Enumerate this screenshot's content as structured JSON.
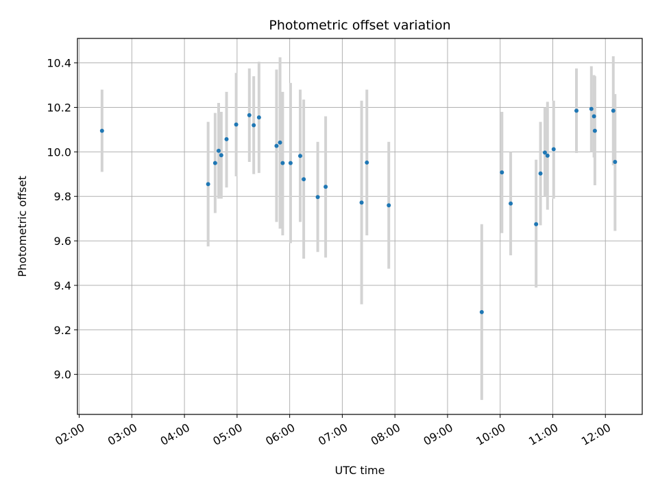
{
  "chart_data": {
    "type": "scatter",
    "title": "Photometric offset variation",
    "xlabel": "UTC time",
    "ylabel": "Photometric offset",
    "x_ticks": [
      "02:00",
      "03:00",
      "04:00",
      "05:00",
      "06:00",
      "07:00",
      "08:00",
      "09:00",
      "10:00",
      "11:00",
      "12:00"
    ],
    "y_ticks": [
      "9.0",
      "9.2",
      "9.4",
      "9.6",
      "9.8",
      "10.0",
      "10.2",
      "10.4"
    ],
    "xlim": [
      "01:58",
      "12:42"
    ],
    "ylim": [
      8.82,
      10.51
    ],
    "grid": true,
    "colors": {
      "point": "#1f77b4",
      "errorbar": "#d3d3d3",
      "grid": "#b0b0b0"
    },
    "points": [
      {
        "t": "02:26",
        "y": 10.095,
        "lo": 9.91,
        "hi": 10.28
      },
      {
        "t": "04:27",
        "y": 9.855,
        "lo": 9.575,
        "hi": 10.135
      },
      {
        "t": "04:35",
        "y": 9.95,
        "lo": 9.725,
        "hi": 10.175
      },
      {
        "t": "04:39",
        "y": 10.005,
        "lo": 9.79,
        "hi": 10.22
      },
      {
        "t": "04:42",
        "y": 9.985,
        "lo": 9.79,
        "hi": 10.18
      },
      {
        "t": "04:48",
        "y": 10.057,
        "lo": 9.84,
        "hi": 10.27
      },
      {
        "t": "04:59",
        "y": 10.123,
        "lo": 9.89,
        "hi": 10.355
      },
      {
        "t": "05:14",
        "y": 10.165,
        "lo": 9.955,
        "hi": 10.375
      },
      {
        "t": "05:19",
        "y": 10.12,
        "lo": 9.9,
        "hi": 10.34
      },
      {
        "t": "05:25",
        "y": 10.155,
        "lo": 9.905,
        "hi": 10.405
      },
      {
        "t": "05:45",
        "y": 10.027,
        "lo": 9.685,
        "hi": 10.37
      },
      {
        "t": "05:49",
        "y": 10.042,
        "lo": 9.655,
        "hi": 10.425
      },
      {
        "t": "05:52",
        "y": 9.95,
        "lo": 9.625,
        "hi": 10.27
      },
      {
        "t": "06:01",
        "y": 9.95,
        "lo": 9.59,
        "hi": 10.31
      },
      {
        "t": "06:12",
        "y": 9.982,
        "lo": 9.685,
        "hi": 10.28
      },
      {
        "t": "06:16",
        "y": 9.877,
        "lo": 9.52,
        "hi": 10.235
      },
      {
        "t": "06:32",
        "y": 9.797,
        "lo": 9.55,
        "hi": 10.045
      },
      {
        "t": "06:41",
        "y": 9.843,
        "lo": 9.525,
        "hi": 10.16
      },
      {
        "t": "07:22",
        "y": 9.772,
        "lo": 9.315,
        "hi": 10.23
      },
      {
        "t": "07:28",
        "y": 9.952,
        "lo": 9.625,
        "hi": 10.28
      },
      {
        "t": "07:53",
        "y": 9.76,
        "lo": 9.475,
        "hi": 10.045
      },
      {
        "t": "09:39",
        "y": 9.28,
        "lo": 8.885,
        "hi": 9.675
      },
      {
        "t": "10:02",
        "y": 9.908,
        "lo": 9.635,
        "hi": 10.18
      },
      {
        "t": "10:12",
        "y": 9.768,
        "lo": 9.535,
        "hi": 10.0
      },
      {
        "t": "10:41",
        "y": 9.675,
        "lo": 9.39,
        "hi": 9.965
      },
      {
        "t": "10:46",
        "y": 9.903,
        "lo": 9.67,
        "hi": 10.135
      },
      {
        "t": "10:51",
        "y": 9.997,
        "lo": 9.8,
        "hi": 10.2
      },
      {
        "t": "10:54",
        "y": 9.983,
        "lo": 9.74,
        "hi": 10.225
      },
      {
        "t": "11:01",
        "y": 10.012,
        "lo": 9.79,
        "hi": 10.23
      },
      {
        "t": "11:27",
        "y": 10.185,
        "lo": 9.995,
        "hi": 10.375
      },
      {
        "t": "11:44",
        "y": 10.193,
        "lo": 10.0,
        "hi": 10.385
      },
      {
        "t": "11:47",
        "y": 10.16,
        "lo": 9.975,
        "hi": 10.345
      },
      {
        "t": "11:48",
        "y": 10.095,
        "lo": 9.85,
        "hi": 10.34
      },
      {
        "t": "12:09",
        "y": 10.185,
        "lo": 9.94,
        "hi": 10.43
      },
      {
        "t": "12:11",
        "y": 9.955,
        "lo": 9.645,
        "hi": 10.26
      }
    ]
  }
}
